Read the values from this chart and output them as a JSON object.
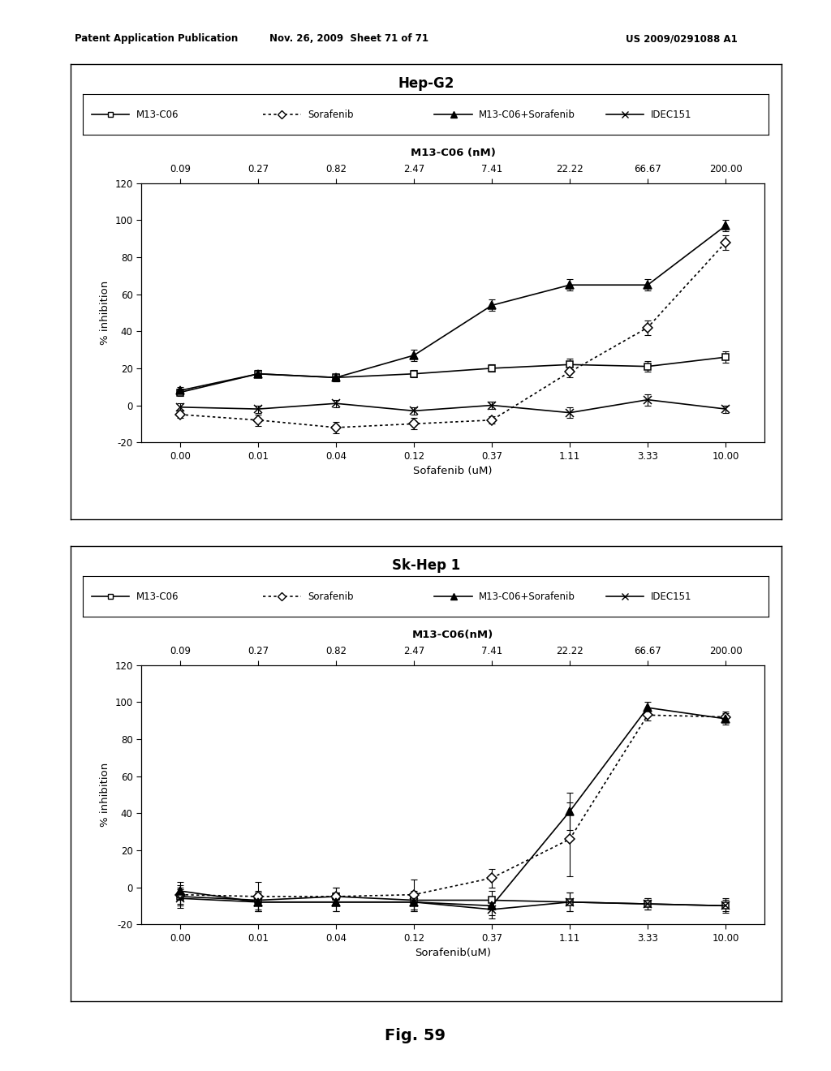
{
  "page_header_left": "Patent Application Publication",
  "page_header_mid": "Nov. 26, 2009  Sheet 71 of 71",
  "page_header_right": "US 2009/0291088 A1",
  "fig_label": "Fig. 59",
  "chart1": {
    "title": "Hep-G2",
    "top_xlabel": "M13-C06 (nM)",
    "top_xtick_labels": [
      "0.09",
      "0.27",
      "0.82",
      "2.47",
      "7.41",
      "22.22",
      "66.67",
      "200.00"
    ],
    "bottom_xlabel": "Sofafenib (uM)",
    "bottom_xtick_labels": [
      "0.00",
      "0.01",
      "0.04",
      "0.12",
      "0.37",
      "1.11",
      "3.33",
      "10.00"
    ],
    "ylabel": "% inhibition",
    "ylim": [
      -20,
      120
    ],
    "yticks": [
      -20,
      0,
      20,
      40,
      60,
      80,
      100,
      120
    ],
    "series_order": [
      "M13_C06",
      "Sorafenib",
      "M13_C06_Sorafenib",
      "IDEC151"
    ],
    "series": {
      "M13_C06": {
        "y": [
          7,
          17,
          15,
          17,
          20,
          22,
          21,
          26
        ],
        "yerr": [
          2,
          2,
          2,
          2,
          2,
          3,
          3,
          3
        ],
        "style": "solid",
        "marker": "s",
        "markersize": 6,
        "fillstyle": "none",
        "label": "M13-C06"
      },
      "Sorafenib": {
        "y": [
          -5,
          -8,
          -12,
          -10,
          -8,
          18,
          42,
          88
        ],
        "yerr": [
          2,
          3,
          3,
          3,
          2,
          3,
          4,
          4
        ],
        "style": "dotted",
        "marker": "D",
        "markersize": 6,
        "fillstyle": "none",
        "label": "Sorafenib"
      },
      "M13_C06_Sorafenib": {
        "y": [
          8,
          17,
          15,
          27,
          54,
          65,
          65,
          97
        ],
        "yerr": [
          2,
          2,
          2,
          3,
          3,
          3,
          3,
          3
        ],
        "style": "solid",
        "marker": "^",
        "markersize": 7,
        "fillstyle": "full",
        "label": "M13-C06+Sorafenib"
      },
      "IDEC151": {
        "y": [
          -1,
          -2,
          1,
          -3,
          0,
          -4,
          3,
          -2
        ],
        "yerr": [
          2,
          2,
          2,
          2,
          2,
          3,
          3,
          2
        ],
        "style": "solid",
        "marker": "x",
        "markersize": 7,
        "fillstyle": "full",
        "label": "IDEC151"
      }
    }
  },
  "chart2": {
    "title": "Sk-Hep 1",
    "top_xlabel": "M13-C06(nM)",
    "top_xtick_labels": [
      "0.09",
      "0.27",
      "0.82",
      "2.47",
      "7.41",
      "22.22",
      "66.67",
      "200.00"
    ],
    "bottom_xlabel": "Sorafenib(uM)",
    "bottom_xtick_labels": [
      "0.00",
      "0.01",
      "0.04",
      "0.12",
      "0.37",
      "1.11",
      "3.33",
      "10.00"
    ],
    "ylabel": "% inhibition",
    "ylim": [
      -20,
      120
    ],
    "yticks": [
      -20,
      0,
      20,
      40,
      60,
      80,
      100,
      120
    ],
    "series_order": [
      "M13_C06",
      "Sorafenib",
      "M13_C06_Sorafenib",
      "IDEC151"
    ],
    "series": {
      "M13_C06": {
        "y": [
          -5,
          -7,
          -5,
          -7,
          -7,
          -8,
          -9,
          -10
        ],
        "yerr": [
          5,
          5,
          5,
          5,
          5,
          5,
          3,
          4
        ],
        "style": "solid",
        "marker": "s",
        "markersize": 6,
        "fillstyle": "none",
        "label": "M13-C06"
      },
      "Sorafenib": {
        "y": [
          -4,
          -5,
          -5,
          -4,
          5,
          26,
          93,
          92
        ],
        "yerr": [
          5,
          8,
          5,
          8,
          5,
          20,
          3,
          3
        ],
        "style": "dotted",
        "marker": "D",
        "markersize": 6,
        "fillstyle": "none",
        "label": "Sorafenib"
      },
      "M13_C06_Sorafenib": {
        "y": [
          -2,
          -8,
          -8,
          -8,
          -10,
          41,
          97,
          91
        ],
        "yerr": [
          5,
          5,
          5,
          5,
          5,
          10,
          3,
          3
        ],
        "style": "solid",
        "marker": "^",
        "markersize": 7,
        "fillstyle": "full",
        "label": "M13-C06+Sorafenib"
      },
      "IDEC151": {
        "y": [
          -6,
          -8,
          -8,
          -8,
          -12,
          -8,
          -9,
          -10
        ],
        "yerr": [
          5,
          5,
          5,
          5,
          5,
          5,
          3,
          3
        ],
        "style": "solid",
        "marker": "x",
        "markersize": 7,
        "fillstyle": "full",
        "label": "IDEC151"
      }
    }
  }
}
